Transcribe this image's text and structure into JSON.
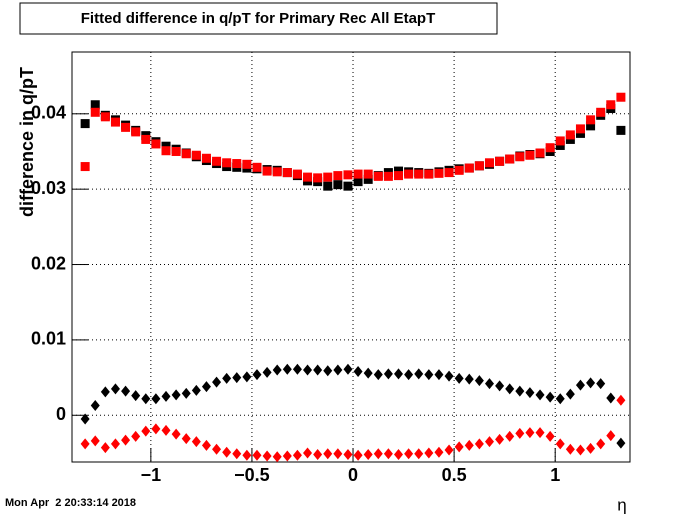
{
  "chart_data": {
    "type": "scatter",
    "title": "Fitted difference in q/pT for Primary Rec All EtapT",
    "y_label": "difference in q/pT",
    "x_label": "η",
    "footer": "Mon Apr  2 20:33:14 2018",
    "x": [
      -1.325,
      -1.275,
      -1.225,
      -1.175,
      -1.125,
      -1.075,
      -1.025,
      -0.975,
      -0.925,
      -0.875,
      -0.825,
      -0.775,
      -0.725,
      -0.675,
      -0.625,
      -0.575,
      -0.525,
      -0.475,
      -0.425,
      -0.375,
      -0.325,
      -0.275,
      -0.225,
      -0.175,
      -0.125,
      -0.075,
      -0.025,
      0.025,
      0.075,
      0.125,
      0.175,
      0.225,
      0.275,
      0.325,
      0.375,
      0.425,
      0.475,
      0.525,
      0.575,
      0.625,
      0.675,
      0.725,
      0.775,
      0.825,
      0.875,
      0.925,
      0.975,
      1.025,
      1.075,
      1.125,
      1.175,
      1.225,
      1.275,
      1.325
    ],
    "series": [
      {
        "color": "#000000",
        "marker": "square",
        "values": [
          0.0387,
          0.0412,
          0.0398,
          0.0392,
          0.0385,
          0.0378,
          0.0371,
          0.0363,
          0.0357,
          0.0353,
          0.0348,
          0.0343,
          0.0338,
          0.0334,
          0.033,
          0.0329,
          0.0328,
          0.0327,
          0.0326,
          0.0325,
          0.0322,
          0.0318,
          0.0311,
          0.031,
          0.0304,
          0.0306,
          0.0304,
          0.031,
          0.0313,
          0.0318,
          0.0322,
          0.0324,
          0.0323,
          0.0322,
          0.0321,
          0.0323,
          0.0325,
          0.0327,
          0.0328,
          0.0331,
          0.0333,
          0.0337,
          0.034,
          0.0344,
          0.0346,
          0.0347,
          0.035,
          0.0358,
          0.0366,
          0.0374,
          0.0384,
          0.0398,
          0.0407,
          0.0378
        ]
      },
      {
        "color": "#ff0000",
        "marker": "square",
        "values": [
          0.033,
          0.0402,
          0.0396,
          0.0389,
          0.0382,
          0.0376,
          0.0366,
          0.036,
          0.0351,
          0.035,
          0.0347,
          0.0345,
          0.0341,
          0.0337,
          0.0335,
          0.0334,
          0.0333,
          0.0329,
          0.0324,
          0.0323,
          0.0322,
          0.032,
          0.0316,
          0.0315,
          0.0316,
          0.0318,
          0.0319,
          0.032,
          0.032,
          0.0317,
          0.0317,
          0.0318,
          0.032,
          0.032,
          0.032,
          0.0321,
          0.0322,
          0.0325,
          0.0328,
          0.0331,
          0.0335,
          0.0337,
          0.034,
          0.0343,
          0.0345,
          0.0348,
          0.0355,
          0.0364,
          0.0372,
          0.038,
          0.0392,
          0.0402,
          0.0412,
          0.0422
        ]
      },
      {
        "color": "#000000",
        "marker": "diamond",
        "values": [
          -0.0005,
          0.0013,
          0.0031,
          0.0035,
          0.0032,
          0.0026,
          0.0022,
          0.0022,
          0.0025,
          0.0027,
          0.0029,
          0.0033,
          0.0038,
          0.0044,
          0.0049,
          0.005,
          0.0051,
          0.0054,
          0.0057,
          0.006,
          0.0061,
          0.0061,
          0.006,
          0.006,
          0.0059,
          0.006,
          0.0061,
          0.0058,
          0.0056,
          0.0054,
          0.0055,
          0.0055,
          0.0054,
          0.0055,
          0.0054,
          0.0054,
          0.0052,
          0.0049,
          0.0048,
          0.0046,
          0.0042,
          0.0039,
          0.0035,
          0.0032,
          0.003,
          0.0027,
          0.0024,
          0.0022,
          0.0028,
          0.004,
          0.0043,
          0.0042,
          0.0023,
          -0.0037
        ]
      },
      {
        "color": "#ff0000",
        "marker": "diamond",
        "values": [
          -0.0038,
          -0.0034,
          -0.0043,
          -0.0038,
          -0.0033,
          -0.0028,
          -0.0021,
          -0.0018,
          -0.002,
          -0.0025,
          -0.0031,
          -0.0035,
          -0.004,
          -0.0045,
          -0.0049,
          -0.0051,
          -0.0053,
          -0.0053,
          -0.0054,
          -0.0055,
          -0.0054,
          -0.0053,
          -0.005,
          -0.0052,
          -0.0051,
          -0.0051,
          -0.0052,
          -0.0053,
          -0.0052,
          -0.0051,
          -0.0051,
          -0.0052,
          -0.0051,
          -0.0051,
          -0.005,
          -0.0049,
          -0.0046,
          -0.0042,
          -0.004,
          -0.0038,
          -0.0035,
          -0.0032,
          -0.0028,
          -0.0024,
          -0.0023,
          -0.0023,
          -0.0028,
          -0.0038,
          -0.0045,
          -0.0046,
          -0.0044,
          -0.0038,
          -0.0027,
          0.002
        ]
      }
    ],
    "xlim": [
      -1.39,
      1.37
    ],
    "ylim": [
      -0.0062,
      0.0482
    ],
    "xticks": [
      {
        "value": -1,
        "label": "−1"
      },
      {
        "value": -0.5,
        "label": "−0.5"
      },
      0,
      0.5,
      1
    ],
    "yticks": [
      0,
      0.01,
      0.02,
      0.03,
      0.04
    ],
    "grid": true
  }
}
